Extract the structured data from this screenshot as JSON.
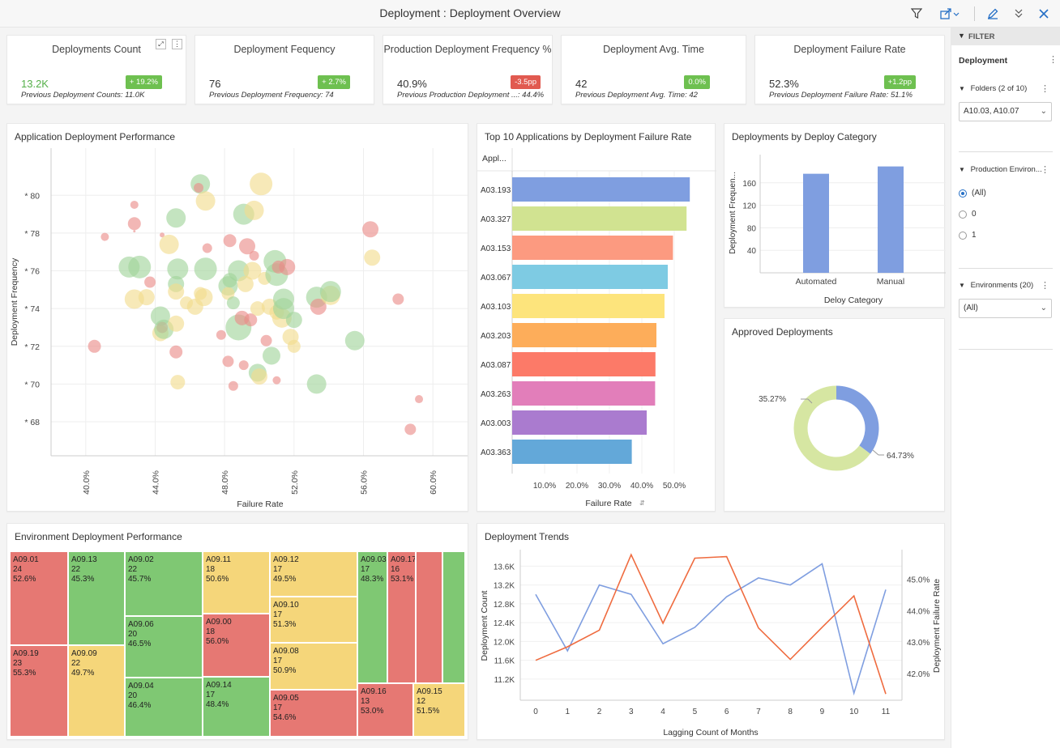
{
  "window": {
    "title": "Deployment : Deployment Overview"
  },
  "kpis": [
    {
      "title": "Deployments Count",
      "value": "13.2K",
      "value_color": "#56b04a",
      "prev": "Previous Deployment Counts: 11.0K",
      "badge": "+ 19.2%",
      "badge_color": "#6ec050"
    },
    {
      "title": "Deployment Fequency",
      "value": "76",
      "value_color": "#333333",
      "prev": "Previous Deployment Frequency: 74",
      "badge": "+ 2.7%",
      "badge_color": "#6ec050"
    },
    {
      "title": "Production Deployment Frequency %",
      "value": "40.9%",
      "value_color": "#333333",
      "prev": "Previous Production Deployment ...: 44.4%",
      "badge": "-3.5pp",
      "badge_color": "#e15a50"
    },
    {
      "title": "Deployment Avg. Time",
      "value": "42",
      "value_color": "#333333",
      "prev": "Previous Deployment Avg. Time: 42",
      "badge": "0.0%",
      "badge_color": "#6ec050"
    },
    {
      "title": "Deployment Failure Rate",
      "value": "52.3%",
      "value_color": "#333333",
      "prev": "Previous Deployment Failure Rate: 51.1%",
      "badge": "+1.2pp",
      "badge_color": "#6ec050"
    }
  ],
  "panels": {
    "bubble": "Application Deployment Performance",
    "hbar": "Top 10 Applications by Deployment Failure Rate",
    "category": "Deployments by Deploy Category",
    "approved": "Approved Deployments",
    "treemap": "Environment Deployment Performance",
    "trends": "Deployment Trends"
  },
  "filter": {
    "header": "FILTER",
    "section": "Deployment",
    "folders_label": "Folders (2 of 10)",
    "folders_value": "A10.03, A10.07",
    "prod_env_label": "Production Environ...",
    "prod_env_options": [
      "(All)",
      "0",
      "1"
    ],
    "environments_label": "Environments (20)",
    "environments_value": "(All)"
  },
  "icons": {
    "filter": "filter-icon",
    "export": "export-icon",
    "edit": "pencil-icon",
    "collapse": "double-chevron-icon",
    "close": "close-icon",
    "expand": "expand-icon",
    "menu": "kebab-menu-icon"
  },
  "chart_data": [
    {
      "type": "scatter",
      "xlabel": "Failure Rate",
      "ylabel": "Deployment Frequency",
      "x_ticks": [
        "40.0%",
        "44.0%",
        "48.0%",
        "52.0%",
        "56.0%",
        "60.0%"
      ],
      "y_ticks": [
        "68",
        "70",
        "72",
        "74",
        "76",
        "78",
        "80"
      ],
      "xlim": [
        0.38,
        0.62
      ],
      "ylim": [
        66.2,
        82.5
      ],
      "colors": {
        "red": "#ea8b88",
        "yellow": "#f2db8c",
        "green": "#9fd49a"
      },
      "points": [
        {
          "x": 0.411,
          "y": 77.8,
          "r": 5,
          "c": "red"
        },
        {
          "x": 0.405,
          "y": 72.0,
          "r": 8,
          "c": "red"
        },
        {
          "x": 0.428,
          "y": 79.5,
          "r": 5,
          "c": "red"
        },
        {
          "x": 0.428,
          "y": 78.5,
          "r": 8,
          "c": "red"
        },
        {
          "x": 0.425,
          "y": 76.2,
          "r": 13,
          "c": "green"
        },
        {
          "x": 0.431,
          "y": 76.2,
          "r": 14,
          "c": "green"
        },
        {
          "x": 0.428,
          "y": 74.5,
          "r": 12,
          "c": "yellow"
        },
        {
          "x": 0.435,
          "y": 74.6,
          "r": 10,
          "c": "yellow"
        },
        {
          "x": 0.437,
          "y": 75.4,
          "r": 7,
          "c": "red"
        },
        {
          "x": 0.443,
          "y": 73.6,
          "r": 12,
          "c": "green"
        },
        {
          "x": 0.443,
          "y": 72.7,
          "r": 10,
          "c": "yellow"
        },
        {
          "x": 0.444,
          "y": 73.0,
          "r": 7,
          "c": "red"
        },
        {
          "x": 0.445,
          "y": 72.9,
          "r": 12,
          "c": "green"
        },
        {
          "x": 0.444,
          "y": 77.9,
          "r": 3,
          "c": "red"
        },
        {
          "x": 0.448,
          "y": 77.4,
          "r": 12,
          "c": "yellow"
        },
        {
          "x": 0.452,
          "y": 78.8,
          "r": 12,
          "c": "green"
        },
        {
          "x": 0.453,
          "y": 76.1,
          "r": 13,
          "c": "green"
        },
        {
          "x": 0.452,
          "y": 75.3,
          "r": 10,
          "c": "green"
        },
        {
          "x": 0.452,
          "y": 74.9,
          "r": 10,
          "c": "yellow"
        },
        {
          "x": 0.452,
          "y": 73.2,
          "r": 10,
          "c": "yellow"
        },
        {
          "x": 0.458,
          "y": 74.3,
          "r": 8,
          "c": "yellow"
        },
        {
          "x": 0.452,
          "y": 71.7,
          "r": 8,
          "c": "red"
        },
        {
          "x": 0.453,
          "y": 70.1,
          "r": 9,
          "c": "yellow"
        },
        {
          "x": 0.463,
          "y": 74.1,
          "r": 10,
          "c": "yellow"
        },
        {
          "x": 0.466,
          "y": 74.8,
          "r": 8,
          "c": "yellow"
        },
        {
          "x": 0.466,
          "y": 80.6,
          "r": 12,
          "c": "green"
        },
        {
          "x": 0.465,
          "y": 80.4,
          "r": 6,
          "c": "red"
        },
        {
          "x": 0.469,
          "y": 79.7,
          "r": 12,
          "c": "yellow"
        },
        {
          "x": 0.47,
          "y": 77.2,
          "r": 6,
          "c": "red"
        },
        {
          "x": 0.468,
          "y": 74.6,
          "r": 11,
          "c": "yellow"
        },
        {
          "x": 0.469,
          "y": 76.1,
          "r": 14,
          "c": "green"
        },
        {
          "x": 0.478,
          "y": 72.6,
          "r": 6,
          "c": "red"
        },
        {
          "x": 0.482,
          "y": 75.2,
          "r": 12,
          "c": "green"
        },
        {
          "x": 0.482,
          "y": 71.2,
          "r": 7,
          "c": "red"
        },
        {
          "x": 0.483,
          "y": 77.6,
          "r": 8,
          "c": "red"
        },
        {
          "x": 0.482,
          "y": 74.8,
          "r": 8,
          "c": "yellow"
        },
        {
          "x": 0.485,
          "y": 74.3,
          "r": 8,
          "c": "green"
        },
        {
          "x": 0.488,
          "y": 76.0,
          "r": 13,
          "c": "green"
        },
        {
          "x": 0.483,
          "y": 75.5,
          "r": 9,
          "c": "green"
        },
        {
          "x": 0.488,
          "y": 73.0,
          "r": 16,
          "c": "green"
        },
        {
          "x": 0.491,
          "y": 79.0,
          "r": 13,
          "c": "green"
        },
        {
          "x": 0.485,
          "y": 69.9,
          "r": 6,
          "c": "red"
        },
        {
          "x": 0.49,
          "y": 73.5,
          "r": 9,
          "c": "red"
        },
        {
          "x": 0.491,
          "y": 71.0,
          "r": 6,
          "c": "red"
        },
        {
          "x": 0.492,
          "y": 75.3,
          "r": 10,
          "c": "yellow"
        },
        {
          "x": 0.493,
          "y": 77.3,
          "r": 10,
          "c": "red"
        },
        {
          "x": 0.497,
          "y": 79.2,
          "r": 12,
          "c": "yellow"
        },
        {
          "x": 0.496,
          "y": 76.0,
          "r": 11,
          "c": "yellow"
        },
        {
          "x": 0.499,
          "y": 70.6,
          "r": 11,
          "c": "green"
        },
        {
          "x": 0.5,
          "y": 70.4,
          "r": 10,
          "c": "yellow"
        },
        {
          "x": 0.495,
          "y": 73.4,
          "r": 8,
          "c": "red"
        },
        {
          "x": 0.497,
          "y": 76.8,
          "r": 6,
          "c": "red"
        },
        {
          "x": 0.499,
          "y": 74.0,
          "r": 9,
          "c": "yellow"
        },
        {
          "x": 0.503,
          "y": 75.6,
          "r": 8,
          "c": "yellow"
        },
        {
          "x": 0.501,
          "y": 80.6,
          "r": 14,
          "c": "yellow"
        },
        {
          "x": 0.504,
          "y": 72.3,
          "r": 7,
          "c": "red"
        },
        {
          "x": 0.509,
          "y": 76.5,
          "r": 14,
          "c": "green"
        },
        {
          "x": 0.51,
          "y": 75.8,
          "r": 14,
          "c": "green"
        },
        {
          "x": 0.506,
          "y": 74.1,
          "r": 10,
          "c": "yellow"
        },
        {
          "x": 0.507,
          "y": 71.5,
          "r": 11,
          "c": "green"
        },
        {
          "x": 0.51,
          "y": 73.8,
          "r": 9,
          "c": "yellow"
        },
        {
          "x": 0.513,
          "y": 73.5,
          "r": 12,
          "c": "yellow"
        },
        {
          "x": 0.514,
          "y": 74.0,
          "r": 13,
          "c": "green"
        },
        {
          "x": 0.518,
          "y": 72.5,
          "r": 10,
          "c": "yellow"
        },
        {
          "x": 0.516,
          "y": 76.2,
          "r": 10,
          "c": "red"
        },
        {
          "x": 0.514,
          "y": 74.5,
          "r": 13,
          "c": "green"
        },
        {
          "x": 0.511,
          "y": 76.2,
          "r": 8,
          "c": "red"
        },
        {
          "x": 0.52,
          "y": 72.0,
          "r": 8,
          "c": "yellow"
        },
        {
          "x": 0.52,
          "y": 73.4,
          "r": 10,
          "c": "green"
        },
        {
          "x": 0.51,
          "y": 70.2,
          "r": 5,
          "c": "red"
        },
        {
          "x": 0.533,
          "y": 74.6,
          "r": 13,
          "c": "green"
        },
        {
          "x": 0.534,
          "y": 74.1,
          "r": 10,
          "c": "red"
        },
        {
          "x": 0.541,
          "y": 74.7,
          "r": 12,
          "c": "yellow"
        },
        {
          "x": 0.541,
          "y": 74.9,
          "r": 13,
          "c": "green"
        },
        {
          "x": 0.533,
          "y": 70.0,
          "r": 12,
          "c": "green"
        },
        {
          "x": 0.555,
          "y": 72.3,
          "r": 12,
          "c": "green"
        },
        {
          "x": 0.564,
          "y": 78.2,
          "r": 10,
          "c": "red"
        },
        {
          "x": 0.565,
          "y": 76.7,
          "r": 10,
          "c": "yellow"
        },
        {
          "x": 0.58,
          "y": 74.5,
          "r": 7,
          "c": "red"
        },
        {
          "x": 0.592,
          "y": 69.2,
          "r": 5,
          "c": "red"
        },
        {
          "x": 0.587,
          "y": 67.6,
          "r": 7,
          "c": "red"
        },
        {
          "x": 0.428,
          "y": 78.1,
          "r": 1.5,
          "c": "red"
        }
      ]
    },
    {
      "type": "bar",
      "orientation": "horizontal",
      "category_header": "Appl...",
      "xlabel": "Failure Rate",
      "categories": [
        "A03.193",
        "A03.327",
        "A03.153",
        "A03.067",
        "A03.103",
        "A03.203",
        "A03.087",
        "A03.263",
        "A03.003",
        "A03.363"
      ],
      "values": [
        0.548,
        0.538,
        0.496,
        0.48,
        0.47,
        0.445,
        0.442,
        0.441,
        0.415,
        0.369
      ],
      "colors": [
        "#7f9ee0",
        "#d1e391",
        "#fc9a80",
        "#7ecbe3",
        "#fde47c",
        "#fdad5a",
        "#fc7a68",
        "#e27eba",
        "#aa7bcf",
        "#63a8d9"
      ],
      "x_ticks": [
        "10.0%",
        "20.0%",
        "30.0%",
        "40.0%",
        "50.0%"
      ],
      "xlim": [
        0,
        0.6
      ]
    },
    {
      "type": "bar",
      "categories": [
        "Automated",
        "Manual"
      ],
      "values": [
        176,
        189
      ],
      "xlabel": "Deloy Category",
      "ylabel": "Deployment Frequen...",
      "y_ticks": [
        "40",
        "80",
        "120",
        "160"
      ],
      "ylim": [
        0,
        210
      ],
      "color": "#7f9ee0"
    },
    {
      "type": "pie",
      "donut": true,
      "slices": [
        {
          "label": "35.27%",
          "value": 35.27,
          "color": "#7f9ee0"
        },
        {
          "label": "64.73%",
          "value": 64.73,
          "color": "#d6e6a2"
        }
      ]
    },
    {
      "type": "heatmap",
      "subtype": "treemap",
      "colors": {
        "red": "#e67873",
        "yellow": "#f5d67a",
        "green": "#7fc873"
      },
      "cells": [
        {
          "name": "A09.01",
          "count": "24",
          "rate": "52.6%",
          "c": "red"
        },
        {
          "name": "A09.19",
          "count": "23",
          "rate": "55.3%",
          "c": "red"
        },
        {
          "name": "A09.13",
          "count": "22",
          "rate": "45.3%",
          "c": "green"
        },
        {
          "name": "A09.09",
          "count": "22",
          "rate": "49.7%",
          "c": "yellow"
        },
        {
          "name": "A09.02",
          "count": "22",
          "rate": "45.7%",
          "c": "green"
        },
        {
          "name": "A09.06",
          "count": "20",
          "rate": "46.5%",
          "c": "green"
        },
        {
          "name": "A09.04",
          "count": "20",
          "rate": "46.4%",
          "c": "green"
        },
        {
          "name": "A09.11",
          "count": "18",
          "rate": "50.6%",
          "c": "yellow"
        },
        {
          "name": "A09.00",
          "count": "18",
          "rate": "56.0%",
          "c": "red"
        },
        {
          "name": "A09.14",
          "count": "17",
          "rate": "48.4%",
          "c": "green"
        },
        {
          "name": "A09.12",
          "count": "17",
          "rate": "49.5%",
          "c": "yellow"
        },
        {
          "name": "A09.10",
          "count": "17",
          "rate": "51.3%",
          "c": "yellow"
        },
        {
          "name": "A09.08",
          "count": "17",
          "rate": "50.9%",
          "c": "yellow"
        },
        {
          "name": "A09.05",
          "count": "17",
          "rate": "54.6%",
          "c": "red"
        },
        {
          "name": "A09.03",
          "count": "17",
          "rate": "48.3%",
          "c": "green"
        },
        {
          "name": "A09.17",
          "count": "16",
          "rate": "53.1%",
          "c": "red"
        },
        {
          "name": "A09.16",
          "count": "13",
          "rate": "53.0%",
          "c": "red"
        },
        {
          "name": "A09.15",
          "count": "12",
          "rate": "51.5%",
          "c": "yellow"
        },
        {
          "name": "",
          "count": "",
          "rate": "",
          "c": "red"
        },
        {
          "name": "",
          "count": "",
          "rate": "",
          "c": "green"
        }
      ]
    },
    {
      "type": "line",
      "xlabel": "Lagging Count of Months",
      "ylabel": "Deployment Count",
      "y2label": "Deployment Failure Rate",
      "x": [
        0,
        1,
        2,
        3,
        4,
        5,
        6,
        7,
        8,
        9,
        10,
        11
      ],
      "y_ticks": [
        "11.2K",
        "11.6K",
        "12.0K",
        "12.4K",
        "12.8K",
        "13.2K",
        "13.6K"
      ],
      "ylim": [
        10.75,
        13.95
      ],
      "y2_ticks": [
        "42.0%",
        "43.0%",
        "44.0%",
        "45.0%"
      ],
      "y2lim": [
        0.4115,
        0.4594
      ],
      "series": [
        {
          "name": "Deployment Count",
          "axis": "left",
          "color": "#7f9ee0",
          "values": [
            13.0,
            11.8,
            13.2,
            13.0,
            11.95,
            12.3,
            12.95,
            13.35,
            13.2,
            13.65,
            10.9,
            13.1
          ]
        },
        {
          "name": "Deployment Failure Rate",
          "axis": "right",
          "color": "#ef6b3f",
          "values": [
            0.4242,
            0.4285,
            0.4338,
            0.4578,
            0.436,
            0.4567,
            0.4572,
            0.4345,
            0.4245,
            0.4347,
            0.4447,
            0.4135
          ]
        }
      ]
    }
  ]
}
